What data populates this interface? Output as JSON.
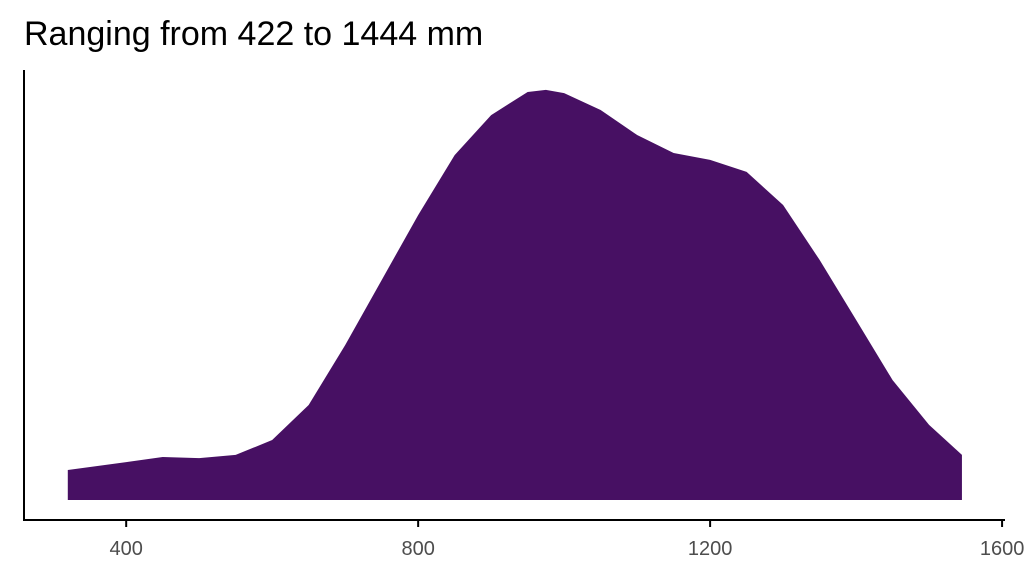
{
  "chart_data": {
    "type": "area",
    "title": "Ranging from 422 to 1444 mm",
    "x": [
      320,
      400,
      450,
      500,
      550,
      600,
      650,
      700,
      750,
      800,
      850,
      900,
      950,
      975,
      1000,
      1050,
      1100,
      1150,
      1200,
      1250,
      1300,
      1350,
      1400,
      1450,
      1500,
      1545
    ],
    "values": [
      0.000113,
      0.000143,
      0.000162,
      0.000158,
      0.00017,
      0.000226,
      0.000358,
      0.000584,
      0.000829,
      0.001074,
      0.0013,
      0.001451,
      0.001538,
      0.001546,
      0.001534,
      0.00147,
      0.001376,
      0.001308,
      0.001282,
      0.001237,
      0.001112,
      0.000905,
      0.000679,
      0.000452,
      0.000283,
      0.00017
    ],
    "color": "#471063",
    "xlim": [
      260,
      1604
    ],
    "xticks": [
      400,
      800,
      1200,
      1600
    ],
    "ylim": [
      -7.54e-05,
      0.001621
    ]
  }
}
